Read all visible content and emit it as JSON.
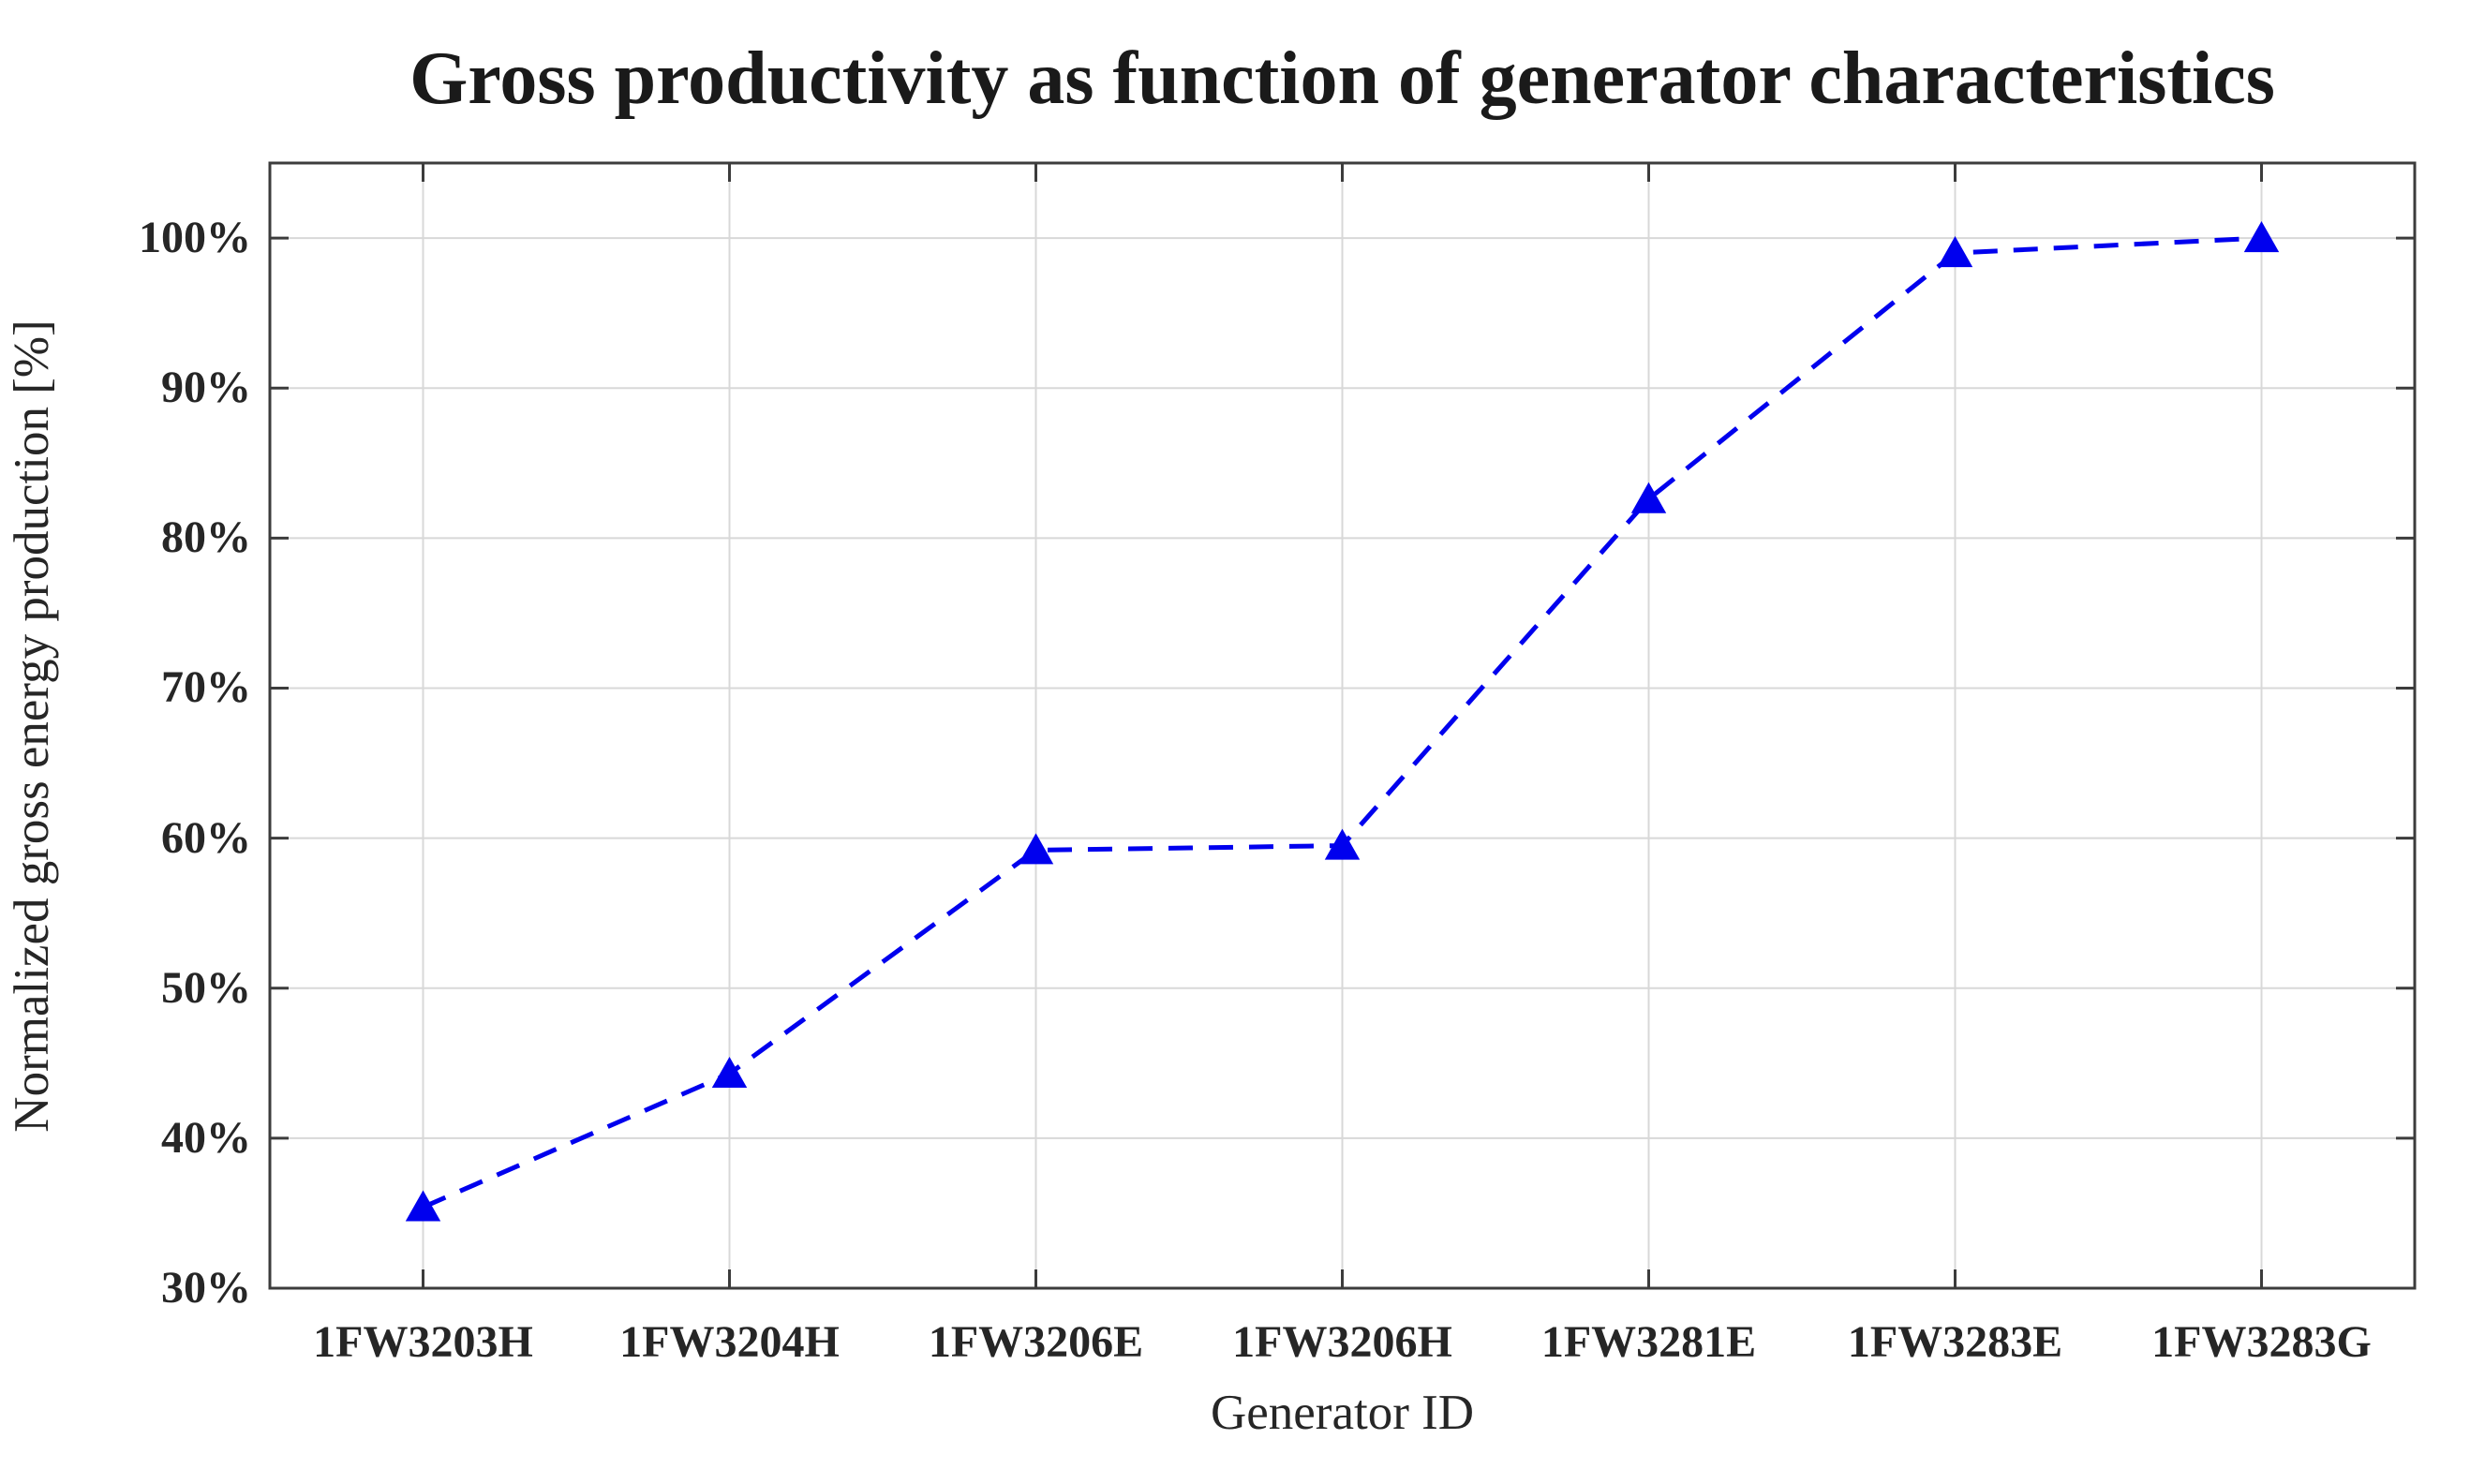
{
  "figure": {
    "background": "#ffffff"
  },
  "chart_data": {
    "type": "line",
    "title": "Gross productivity as function of generator characteristics",
    "xlabel": "Generator ID",
    "ylabel": "Normalized gross energy production [%]",
    "categories": [
      "1FW3203H",
      "1FW3204H",
      "1FW3206E",
      "1FW3206H",
      "1FW3281E",
      "1FW3283E",
      "1FW3283G"
    ],
    "series": [
      {
        "name": "Normalized gross energy production",
        "values": [
          35.4,
          44.3,
          59.2,
          59.5,
          82.6,
          99.0,
          100.0
        ]
      }
    ],
    "ylim": [
      30,
      105
    ],
    "yticks": [
      30,
      40,
      50,
      60,
      70,
      80,
      90,
      100
    ],
    "ytick_labels": [
      "30%",
      "40%",
      "50%",
      "60%",
      "70%",
      "80%",
      "90%",
      "100%"
    ],
    "grid": true,
    "legend_position": "none",
    "line_style": "dashed",
    "marker": "triangle-up",
    "colors": {
      "line": "#0000EE",
      "marker_fill": "#0000EE",
      "grid": "#D8D8D8",
      "axis": "#3C3C3C",
      "text": "#262626",
      "title": "#1A1A1A"
    }
  }
}
